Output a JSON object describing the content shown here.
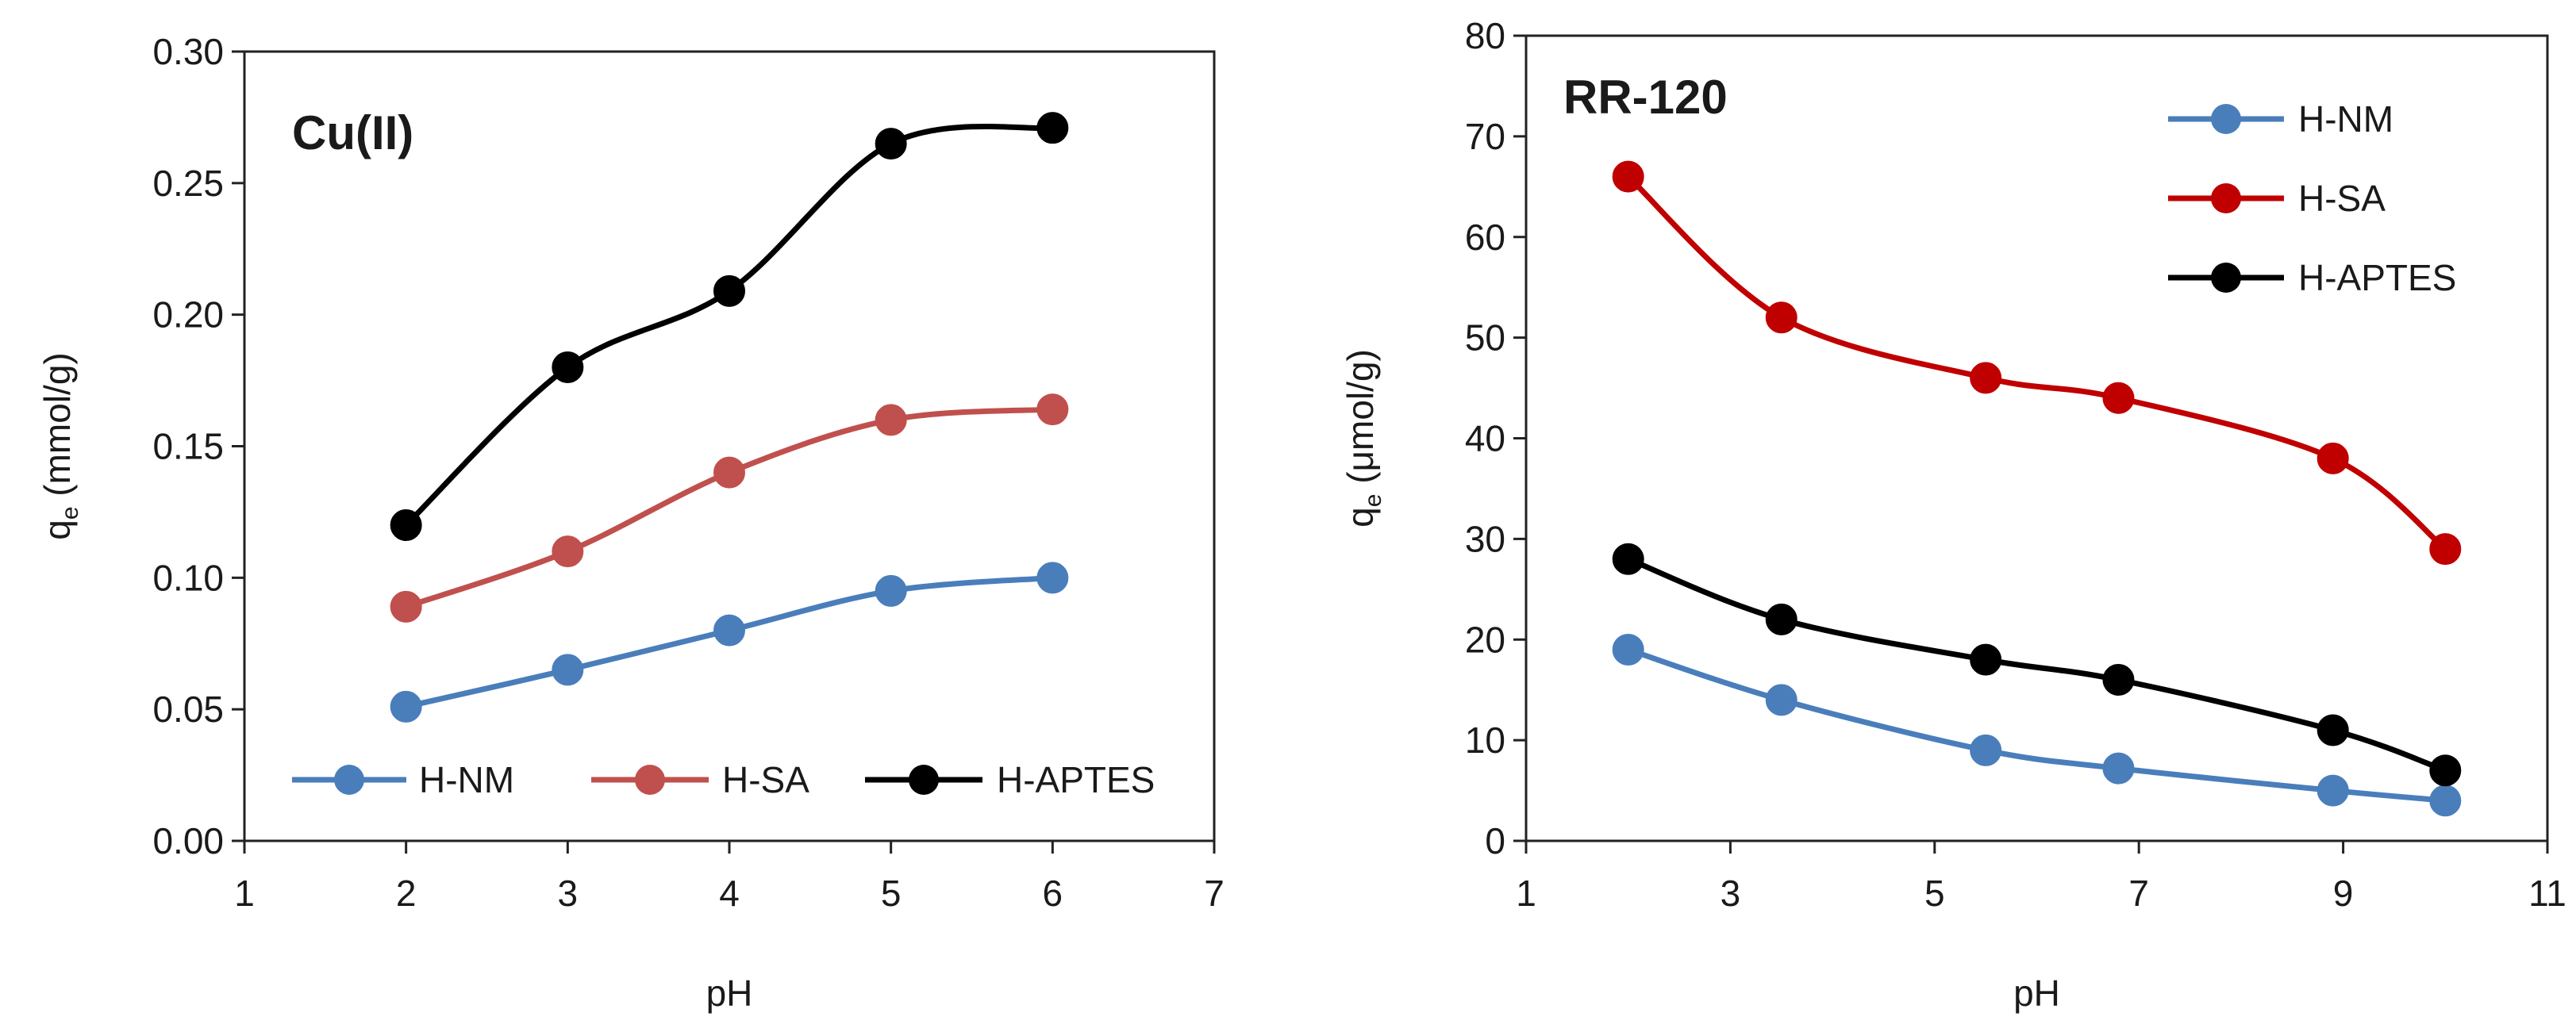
{
  "chart_data": [
    {
      "type": "line",
      "title": "Cu(II)",
      "xlabel": "pH",
      "ylabel_main": "q",
      "ylabel_sub": "e",
      "ylabel_unit": " (mmol/g)",
      "xlim": [
        1,
        7
      ],
      "ylim": [
        0,
        0.3
      ],
      "xticks": [
        1,
        2,
        3,
        4,
        5,
        6,
        7
      ],
      "xtick_labels": [
        "1",
        "2",
        "3",
        "4",
        "5",
        "6",
        "7"
      ],
      "yticks": [
        0,
        0.05,
        0.1,
        0.15,
        0.2,
        0.25,
        0.3
      ],
      "ytick_labels": [
        "0.00",
        "0.05",
        "0.10",
        "0.15",
        "0.20",
        "0.25",
        "0.30"
      ],
      "legend_position": "bottom",
      "series": [
        {
          "name": "H-NM",
          "color": "#4a7ebb",
          "x": [
            2,
            3,
            4,
            5,
            6
          ],
          "values": [
            0.051,
            0.065,
            0.08,
            0.095,
            0.1
          ]
        },
        {
          "name": "H-SA",
          "color": "#c0504d",
          "x": [
            2,
            3,
            4,
            5,
            6
          ],
          "values": [
            0.089,
            0.11,
            0.14,
            0.16,
            0.164
          ]
        },
        {
          "name": "H-APTES",
          "color": "#000000",
          "x": [
            2,
            3,
            4,
            5,
            6
          ],
          "values": [
            0.12,
            0.18,
            0.209,
            0.265,
            0.271
          ]
        }
      ]
    },
    {
      "type": "line",
      "title": "RR-120",
      "xlabel": "pH",
      "ylabel_main": "q",
      "ylabel_sub": "e",
      "ylabel_unit": " (μmol/g)",
      "xlim": [
        1,
        11
      ],
      "ylim": [
        0,
        80
      ],
      "xticks": [
        1,
        3,
        5,
        7,
        9,
        11
      ],
      "xtick_labels": [
        "1",
        "3",
        "5",
        "7",
        "9",
        "11"
      ],
      "yticks": [
        0,
        10,
        20,
        30,
        40,
        50,
        60,
        70,
        80
      ],
      "ytick_labels": [
        "0",
        "10",
        "20",
        "30",
        "40",
        "50",
        "60",
        "70",
        "80"
      ],
      "legend_position": "top-right",
      "series": [
        {
          "name": "H-NM",
          "color": "#4a7ebb",
          "x": [
            2,
            3.5,
            5.5,
            6.8,
            8.9,
            10
          ],
          "values": [
            19,
            14,
            9,
            7.2,
            5,
            4
          ]
        },
        {
          "name": "H-SA",
          "color": "#c00000",
          "x": [
            2,
            3.5,
            5.5,
            6.8,
            8.9,
            10
          ],
          "values": [
            66,
            52,
            46,
            44,
            38,
            29
          ]
        },
        {
          "name": "H-APTES",
          "color": "#000000",
          "x": [
            2,
            3.5,
            5.5,
            6.8,
            8.9,
            10
          ],
          "values": [
            28,
            22,
            18,
            16,
            11,
            7
          ]
        }
      ]
    }
  ]
}
